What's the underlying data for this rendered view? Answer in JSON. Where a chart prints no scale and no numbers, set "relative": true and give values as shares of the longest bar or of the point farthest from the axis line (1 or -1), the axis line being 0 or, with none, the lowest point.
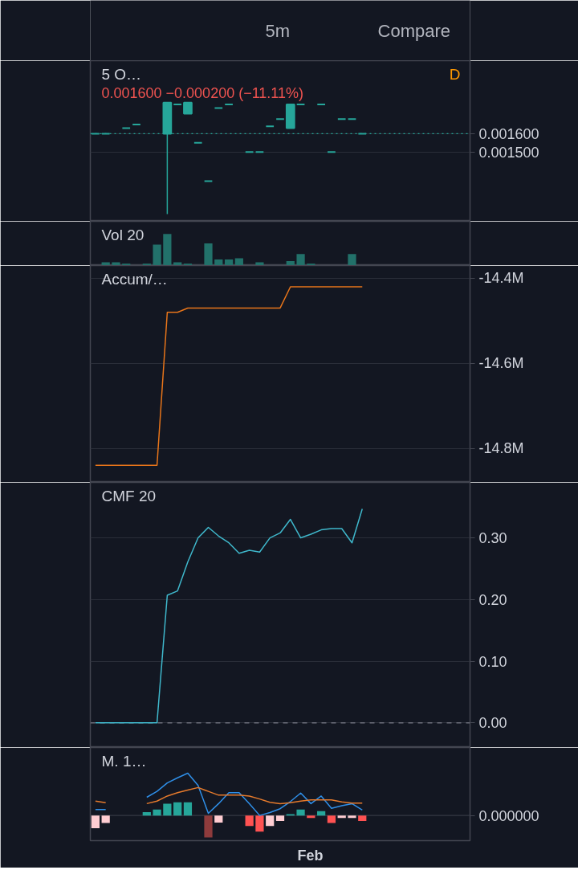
{
  "chart_data": [
    {
      "type": "other",
      "annotations": [
        "5m",
        "Compare"
      ]
    },
    {
      "type": "candlestick",
      "title": "5 O…",
      "subtitle": "0.001600 −0.000200 (−11.11%)",
      "annotations": [
        "D"
      ],
      "categories": [
        null,
        null,
        null,
        null,
        null,
        null,
        null,
        null,
        null,
        null,
        null,
        null,
        null,
        null,
        null,
        null,
        null,
        null,
        null,
        null,
        null,
        null,
        null,
        null,
        null,
        null,
        null,
        null,
        null,
        null,
        null,
        null,
        null,
        null,
        null,
        null,
        null
      ],
      "ohlc": [
        [
          0.0016,
          0.0016,
          0.0016,
          0.0016
        ],
        [
          0.0016,
          0.0016,
          0.0016,
          0.0016
        ],
        null,
        [
          0.00163,
          0.00163,
          0.00163,
          0.00163
        ],
        [
          0.00165,
          0.00165,
          0.00165,
          0.00165
        ],
        null,
        null,
        [
          0.0016,
          0.00177,
          0.00116,
          0.00177
        ],
        [
          0.00176,
          0.00176,
          0.00176,
          0.00176
        ],
        [
          0.00171,
          0.00177,
          0.00171,
          0.00177
        ],
        [
          0.00155,
          0.00155,
          0.00155,
          0.00155
        ],
        [
          0.00134,
          0.00134,
          0.00134,
          0.00134
        ],
        [
          0.00174,
          0.00174,
          0.00174,
          0.00174
        ],
        [
          0.00176,
          0.00176,
          0.00176,
          0.00176
        ],
        null,
        [
          0.0015,
          0.0015,
          0.0015,
          0.0015
        ],
        [
          0.0015,
          0.0015,
          0.0015,
          0.0015
        ],
        [
          0.00164,
          0.00164,
          0.00164,
          0.00164
        ],
        [
          0.00168,
          0.00168,
          0.00168,
          0.00168
        ],
        [
          0.00163,
          0.00176,
          0.00163,
          0.00176
        ],
        [
          0.00176,
          0.00176,
          0.00176,
          0.00176
        ],
        null,
        [
          0.00176,
          0.00176,
          0.00176,
          0.00176
        ],
        [
          0.0015,
          0.0015,
          0.0015,
          0.0015
        ],
        [
          0.00168,
          0.00168,
          0.00168,
          0.00168
        ],
        [
          0.00168,
          0.00168,
          0.00168,
          0.00168
        ],
        [
          0.0016,
          0.0016,
          0.0016,
          0.0016
        ],
        null,
        null,
        null,
        null,
        null,
        null,
        null,
        null,
        null,
        null
      ],
      "colors": [
        "#26a69a",
        "#26a69a",
        null,
        "#26a69a",
        "#26a69a",
        null,
        null,
        "#26a69a",
        "#26a69a",
        "#26a69a",
        "#26a69a",
        "#26a69a",
        "#26a69a",
        "#26a69a",
        null,
        "#26a69a",
        "#26a69a",
        "#26a69a",
        "#26a69a",
        "#26a69a",
        "#26a69a",
        null,
        "#26a69a",
        "#26a69a",
        "#26a69a",
        "#26a69a",
        "#26a69a",
        null,
        null,
        null,
        null,
        null,
        null,
        null,
        null,
        null,
        null
      ],
      "ylim": [
        0.00112,
        0.002
      ],
      "yticks": [
        {
          "value": 0.0015,
          "label": "0.001500"
        },
        {
          "value": 0.0016,
          "label": "0.001600"
        }
      ],
      "ref_lines": [
        {
          "axis": "y",
          "value": 0.0016,
          "color": "#26a69a",
          "line_style": "dotted"
        }
      ],
      "grid": "y",
      "tick_labels": "y"
    },
    {
      "type": "bar",
      "title": "Vol 20",
      "relative": true,
      "categories": [
        null,
        null,
        null,
        null,
        null,
        null,
        null,
        null,
        null,
        null,
        null,
        null,
        null,
        null,
        null,
        null,
        null,
        null,
        null,
        null,
        null,
        null,
        null,
        null,
        null,
        null,
        null,
        null,
        null,
        null,
        null,
        null,
        null,
        null,
        null,
        null,
        null
      ],
      "values": [
        null,
        0.1,
        0.1,
        0.06,
        null,
        0.06,
        0.66,
        1,
        0.1,
        0.06,
        null,
        0.7,
        0.19,
        0.19,
        0.23,
        null,
        0.1,
        null,
        null,
        0.14,
        0.36,
        0.06,
        null,
        null,
        null,
        0.36,
        null,
        null,
        null,
        null,
        null,
        null,
        null,
        null,
        null,
        null,
        null
      ],
      "color": "#22716a",
      "tick_labels": false
    },
    {
      "type": "line",
      "title": "Accum/…",
      "categories": [
        null,
        null,
        null,
        null,
        null,
        null,
        null,
        null,
        null,
        null,
        null,
        null,
        null,
        null,
        null,
        null,
        null,
        null,
        null,
        null,
        null,
        null,
        null,
        null,
        null,
        null,
        null,
        null,
        null,
        null,
        null,
        null,
        null,
        null,
        null,
        null,
        null
      ],
      "values": [
        -14840000,
        -14840000,
        -14840000,
        -14840000,
        -14840000,
        -14840000,
        -14840000,
        -14480000,
        -14480000,
        -14470000,
        -14470000,
        -14470000,
        -14470000,
        -14470000,
        -14470000,
        -14470000,
        -14470000,
        -14470000,
        -14470000,
        -14420000,
        -14420000,
        -14420000,
        -14420000,
        -14420000,
        -14420000,
        -14420000,
        -14420000,
        null,
        null,
        null,
        null,
        null,
        null,
        null,
        null,
        null,
        null
      ],
      "color": "#e8751a",
      "ylim": [
        -14880000,
        -14370000
      ],
      "yticks": [
        {
          "value": -14400000,
          "label": "-14.4M"
        },
        {
          "value": -14600000,
          "label": "-14.6M"
        },
        {
          "value": -14800000,
          "label": "-14.8M"
        }
      ],
      "grid": "y",
      "tick_labels": "y"
    },
    {
      "type": "line",
      "title": "CMF 20",
      "categories": [
        null,
        null,
        null,
        null,
        null,
        null,
        null,
        null,
        null,
        null,
        null,
        null,
        null,
        null,
        null,
        null,
        null,
        null,
        null,
        null,
        null,
        null,
        null,
        null,
        null,
        null,
        null,
        null,
        null,
        null,
        null,
        null,
        null,
        null,
        null,
        null,
        null
      ],
      "values": [
        0,
        0,
        0,
        0,
        0,
        0,
        0,
        0.207,
        0.214,
        0.261,
        0.3,
        0.317,
        0.303,
        0.292,
        0.275,
        0.28,
        0.277,
        0.3,
        0.308,
        0.33,
        0.3,
        0.306,
        0.313,
        0.315,
        0.315,
        0.292,
        0.347,
        null,
        null,
        null,
        null,
        null,
        null,
        null,
        null,
        null,
        null
      ],
      "color": "#3fb8cc",
      "ylim": [
        -0.04,
        0.39
      ],
      "yticks": [
        {
          "value": 0,
          "label": "0.00"
        },
        {
          "value": 0.1,
          "label": "0.10"
        },
        {
          "value": 0.2,
          "label": "0.20"
        },
        {
          "value": 0.3,
          "label": "0.30"
        }
      ],
      "ref_lines": [
        {
          "axis": "y",
          "value": 0,
          "color": "#787b86",
          "line_style": "dashed"
        }
      ],
      "grid": "y",
      "tick_labels": "y"
    },
    {
      "type": "bar",
      "title": "M. 1…",
      "relative": true,
      "annotations": [
        "Feb"
      ],
      "categories": [
        null,
        null,
        null,
        null,
        null,
        null,
        null,
        null,
        null,
        null,
        null,
        null,
        null,
        null,
        null,
        null,
        null,
        null,
        null,
        null,
        null,
        null,
        null,
        null,
        null,
        null,
        null,
        null,
        null,
        null,
        null,
        null,
        null,
        null,
        null,
        null,
        null
      ],
      "series": [
        {
          "type": "bar",
          "values": [
            -0.3,
            -0.18,
            null,
            null,
            null,
            0.08,
            0.14,
            0.28,
            0.31,
            0.31,
            null,
            -0.52,
            -0.17,
            null,
            null,
            -0.25,
            -0.38,
            -0.25,
            -0.13,
            0.03,
            0.14,
            -0.06,
            0.1,
            -0.18,
            -0.06,
            -0.06,
            -0.13,
            null,
            null,
            null,
            null,
            null,
            null,
            null,
            null,
            null,
            null
          ],
          "colors": [
            "#ffcdd2",
            "#ffcdd2",
            null,
            null,
            null,
            "#26a69a",
            "#26a69a",
            "#26a69a",
            "#26a69a",
            "#26a69a",
            null,
            "#8e3b3c",
            "#ffcdd2",
            null,
            null,
            "#ff5252",
            "#ff5252",
            "#ffcdd2",
            "#ffcdd2",
            "#26a69a",
            "#26a69a",
            "#ff5252",
            "#26a69a",
            "#ff5252",
            "#ffcdd2",
            "#ffcdd2",
            "#ff5252",
            null,
            null,
            null,
            null,
            null,
            null,
            null,
            null,
            null,
            null
          ]
        },
        {
          "type": "line",
          "color": "#2f8fe8",
          "values": [
            0.14,
            0.14,
            null,
            null,
            null,
            0.43,
            0.57,
            0.77,
            0.89,
            1,
            0.71,
            0.05,
            0.28,
            0.54,
            0.54,
            0.28,
            0,
            0.07,
            0.16,
            0.33,
            0.53,
            0.28,
            0.46,
            0.17,
            0.23,
            0.28,
            0.13,
            null,
            null,
            null,
            null,
            null,
            null,
            null,
            null,
            null,
            null
          ]
        },
        {
          "type": "line",
          "color": "#e57a2c",
          "values": [
            0.34,
            0.3,
            null,
            null,
            null,
            0.28,
            0.34,
            0.46,
            0.54,
            0.6,
            0.66,
            0.57,
            0.48,
            0.48,
            0.48,
            0.46,
            0.39,
            0.31,
            0.28,
            0.3,
            0.34,
            0.37,
            0.37,
            0.37,
            0.32,
            0.29,
            0.29,
            null,
            null,
            null,
            null,
            null,
            null,
            null,
            null,
            null,
            null
          ]
        }
      ],
      "ref_lines": [
        {
          "axis": "y",
          "value": 0,
          "label": "0.000000",
          "color": "#363a45"
        }
      ],
      "tick_labels": false
    }
  ]
}
